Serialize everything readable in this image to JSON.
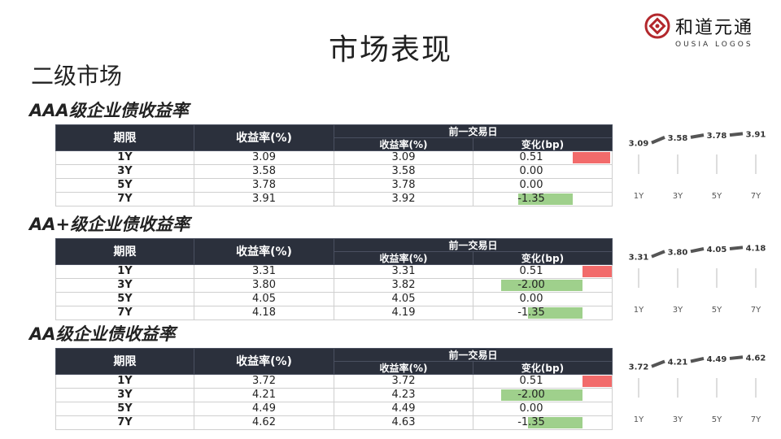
{
  "title": "市场表现",
  "section_heading": "二级市场",
  "logo": {
    "name": "和道元通",
    "subtitle": "OUSIA LOGOS"
  },
  "table_headers": {
    "term": "期限",
    "yield": "收益率(%)",
    "prev_day": "前一交易日",
    "prev_yield": "收益率(%)",
    "change": "变化(bp)"
  },
  "colors": {
    "header_bg": "#2b303c",
    "increase": "#f26b6b",
    "decrease": "#9fd08c",
    "spark_line": "#555555"
  },
  "blocks": [
    {
      "title": "AAA级企业债收益率",
      "rows": [
        {
          "term": "1Y",
          "yield": "3.09",
          "prev": "3.09",
          "change": "0.51"
        },
        {
          "term": "3Y",
          "yield": "3.58",
          "prev": "3.58",
          "change": "0.00"
        },
        {
          "term": "5Y",
          "yield": "3.78",
          "prev": "3.78",
          "change": "0.00"
        },
        {
          "term": "7Y",
          "yield": "3.91",
          "prev": "3.92",
          "change": "-1.35"
        }
      ]
    },
    {
      "title": "AA+级企业债收益率",
      "rows": [
        {
          "term": "1Y",
          "yield": "3.31",
          "prev": "3.31",
          "change": "0.51"
        },
        {
          "term": "3Y",
          "yield": "3.80",
          "prev": "3.82",
          "change": "-2.00"
        },
        {
          "term": "5Y",
          "yield": "4.05",
          "prev": "4.05",
          "change": "0.00"
        },
        {
          "term": "7Y",
          "yield": "4.18",
          "prev": "4.19",
          "change": "-1.35"
        }
      ]
    },
    {
      "title": "AA级企业债收益率",
      "rows": [
        {
          "term": "1Y",
          "yield": "3.72",
          "prev": "3.72",
          "change": "0.51"
        },
        {
          "term": "3Y",
          "yield": "4.21",
          "prev": "4.23",
          "change": "-2.00"
        },
        {
          "term": "5Y",
          "yield": "4.49",
          "prev": "4.49",
          "change": "0.00"
        },
        {
          "term": "7Y",
          "yield": "4.62",
          "prev": "4.63",
          "change": "-1.35"
        }
      ]
    }
  ],
  "chart_data": [
    {
      "type": "line",
      "categories": [
        "1Y",
        "3Y",
        "5Y",
        "7Y"
      ],
      "values": [
        3.09,
        3.58,
        3.78,
        3.91
      ]
    },
    {
      "type": "line",
      "categories": [
        "1Y",
        "3Y",
        "5Y",
        "7Y"
      ],
      "values": [
        3.31,
        3.8,
        4.05,
        4.18
      ]
    },
    {
      "type": "line",
      "categories": [
        "1Y",
        "3Y",
        "5Y",
        "7Y"
      ],
      "values": [
        3.72,
        4.21,
        4.49,
        4.62
      ]
    }
  ]
}
